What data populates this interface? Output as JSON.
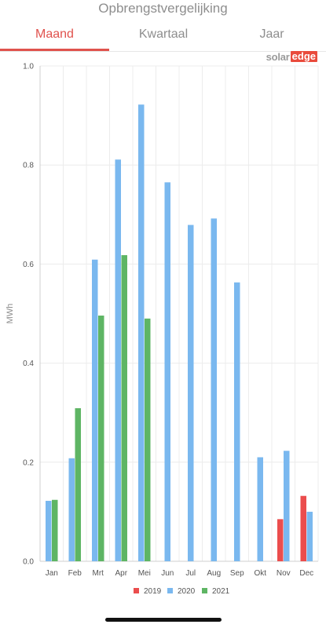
{
  "header": {
    "title": "Opbrengstvergelijking"
  },
  "tabs": [
    {
      "label": "Maand",
      "active": true
    },
    {
      "label": "Kwartaal",
      "active": false
    },
    {
      "label": "Jaar",
      "active": false
    }
  ],
  "logo": {
    "part1": "solar",
    "part2": "edge"
  },
  "colors": {
    "accent": "#e0524d",
    "s2019": "#eb4d4d",
    "s2020": "#7ab8ef",
    "s2021": "#5eb564"
  },
  "chart_data": {
    "type": "bar",
    "ylabel": "MWh",
    "ylim": [
      0,
      1.0
    ],
    "yticks": [
      "0.0",
      "0.2",
      "0.4",
      "0.6",
      "0.8",
      "1.0"
    ],
    "categories": [
      "Jan",
      "Feb",
      "Mrt",
      "Apr",
      "Mei",
      "Jun",
      "Jul",
      "Aug",
      "Sep",
      "Okt",
      "Nov",
      "Dec"
    ],
    "series": [
      {
        "name": "2019",
        "color": "#eb4d4d",
        "values": [
          null,
          null,
          null,
          null,
          null,
          null,
          null,
          null,
          null,
          null,
          0.085,
          0.132
        ]
      },
      {
        "name": "2020",
        "color": "#7ab8ef",
        "values": [
          0.122,
          0.208,
          0.609,
          0.811,
          0.922,
          0.765,
          0.679,
          0.692,
          0.563,
          0.21,
          0.223,
          0.1
        ]
      },
      {
        "name": "2021",
        "color": "#5eb564",
        "values": [
          0.124,
          0.309,
          0.496,
          0.618,
          0.49,
          null,
          null,
          null,
          null,
          null,
          null,
          null
        ]
      }
    ],
    "grid": true,
    "legend_position": "bottom"
  }
}
